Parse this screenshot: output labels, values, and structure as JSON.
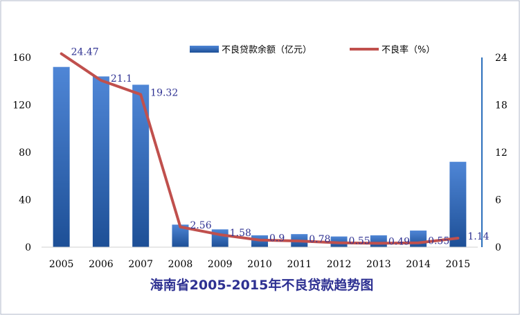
{
  "chart_data": {
    "type": "bar+line",
    "title": "海南省2005-2015年不良贷款趋势图",
    "categories": [
      "2005",
      "2006",
      "2007",
      "2008",
      "2009",
      "2010",
      "2011",
      "2012",
      "2013",
      "2014",
      "2015"
    ],
    "series": [
      {
        "name": "不良贷款余额（亿元）",
        "type": "bar",
        "axis": "left",
        "values": [
          152,
          144,
          137,
          19,
          15,
          10,
          11,
          9,
          10,
          14,
          72
        ]
      },
      {
        "name": "不良率（%）",
        "type": "line",
        "axis": "right",
        "values": [
          24.47,
          21.1,
          19.32,
          2.56,
          1.58,
          0.9,
          0.78,
          0.55,
          0.49,
          0.55,
          1.14
        ],
        "labels": [
          "24.47",
          "21.1",
          "19.32",
          "2.56",
          "1.58",
          "0.9",
          "0.78",
          "0.55",
          "0.49",
          "0.55",
          "1.14"
        ]
      }
    ],
    "y_left": {
      "min": 0,
      "max": 160,
      "ticks": [
        "0",
        "40",
        "80",
        "120",
        "160"
      ]
    },
    "y_right": {
      "min": 0,
      "max": 24,
      "ticks": [
        "0",
        "6",
        "12",
        "18",
        "24"
      ]
    },
    "legend_position": "top-center",
    "grid": false,
    "colors": {
      "bar_light": "#4f86d6",
      "bar_dark": "#1d4f96",
      "line": "#c0504d",
      "axis_right": "#2a6ebb",
      "label": "#2e3192",
      "title": "#2e3192",
      "border": "#b0b8c8"
    }
  }
}
